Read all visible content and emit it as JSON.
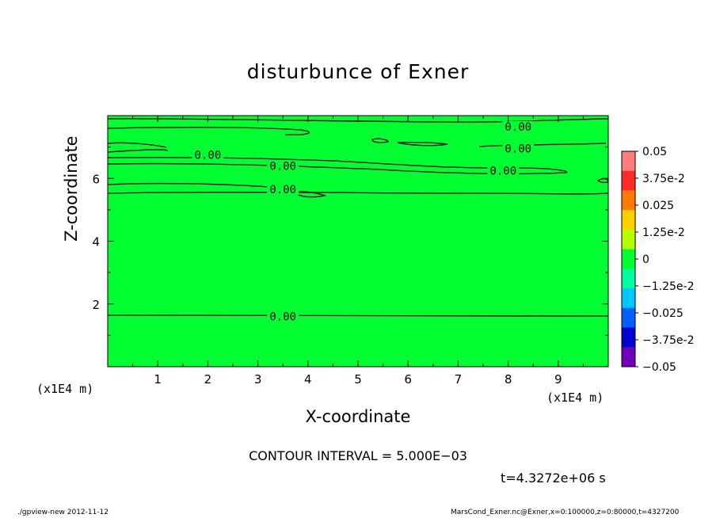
{
  "title": "disturbunce of Exner",
  "chart_data": {
    "type": "contour",
    "title": "disturbunce of Exner",
    "xlabel": "X-coordinate",
    "ylabel": "Z-coordinate",
    "x_unit": "(x1E4 m)",
    "y_unit": "(x1E4 m)",
    "xlim": [
      0,
      10
    ],
    "ylim": [
      0,
      8
    ],
    "x_ticks": [
      "1",
      "2",
      "3",
      "4",
      "5",
      "6",
      "7",
      "8",
      "9"
    ],
    "y_ticks": [
      "2",
      "4",
      "6"
    ],
    "fill_color": "#00ff30",
    "contour_labels": [
      {
        "text": "0.00",
        "x": 2.0,
        "z": 6.75
      },
      {
        "text": "0.00",
        "x": 3.5,
        "z": 6.4
      },
      {
        "text": "0.00",
        "x": 3.5,
        "z": 5.65
      },
      {
        "text": "0.00",
        "x": 3.5,
        "z": 1.6
      },
      {
        "text": "0.00",
        "x": 8.2,
        "z": 7.65
      },
      {
        "text": "0.00",
        "x": 8.2,
        "z": 6.95
      },
      {
        "text": "0.00",
        "x": 7.9,
        "z": 6.25
      }
    ],
    "colorbar": {
      "labels": [
        "0.05",
        "3.75e-2",
        "0.025",
        "1.25e-2",
        "0",
        "−1.25e-2",
        "−0.025",
        "−3.75e-2",
        "−0.05"
      ],
      "colors": [
        "#ff7c7c",
        "#ff2a2a",
        "#ff7a00",
        "#ffd000",
        "#b4ff00",
        "#00ff30",
        "#00ffa0",
        "#00c8ff",
        "#0060ff",
        "#0000d0",
        "#7000b8"
      ]
    }
  },
  "contour_interval": "CONTOUR INTERVAL = 5.000E−03",
  "time_stamp": "t=4.3272e+06 s",
  "footer_left": "./gpview-new  2012-11-12",
  "footer_right": "MarsCond_Exner.nc@Exner,x=0:100000,z=0:80000,t=4327200"
}
